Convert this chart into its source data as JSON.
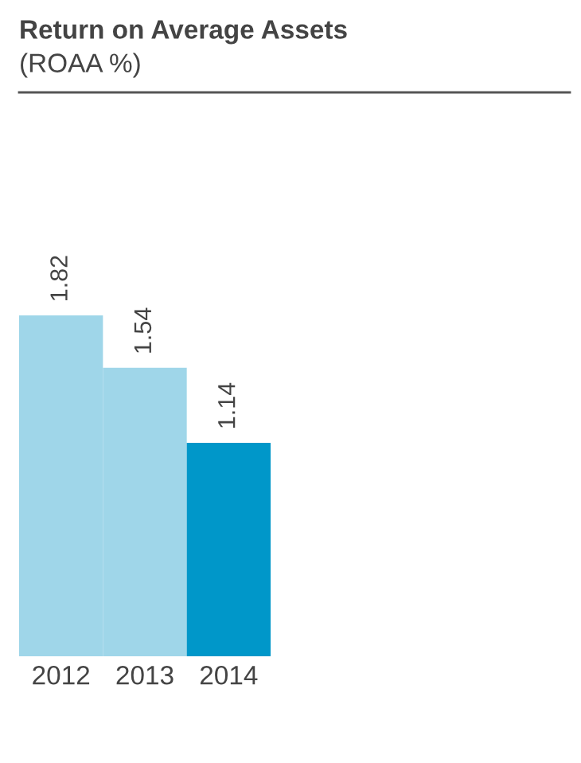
{
  "chart_data": {
    "type": "bar",
    "title": "Return on Average Assets",
    "subtitle": "(ROAA %)",
    "categories": [
      "2012",
      "2013",
      "2014"
    ],
    "values": [
      1.82,
      1.54,
      1.14
    ],
    "colors": [
      "#9fd6e9",
      "#9fd6e9",
      "#0097c9"
    ],
    "data_labels": true,
    "grid": false,
    "legend": false
  }
}
